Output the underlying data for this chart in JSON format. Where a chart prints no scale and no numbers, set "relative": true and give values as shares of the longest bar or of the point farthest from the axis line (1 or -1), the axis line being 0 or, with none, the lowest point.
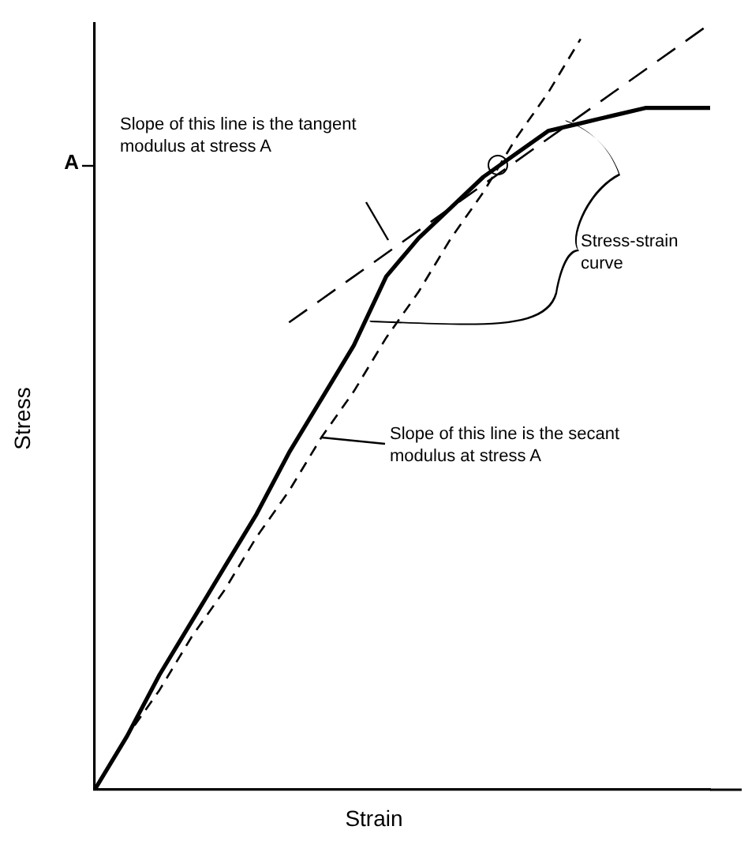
{
  "chart_data": {
    "type": "line",
    "relative": true,
    "xlabel": "Strain",
    "ylabel": "Stress",
    "grid": false,
    "legend": false,
    "categories": [
      null,
      null,
      null,
      null,
      null,
      null,
      null,
      null,
      null,
      null,
      null,
      null,
      null,
      null,
      null,
      null,
      null,
      null,
      null,
      null
    ],
    "series": [
      {
        "color": "#000000",
        "line_style": "solid",
        "values": [
          0,
          0.07,
          0.15,
          0.22,
          0.29,
          0.36,
          0.44,
          0.51,
          0.58,
          0.67,
          0.72,
          0.76,
          0.8,
          0.83,
          0.86,
          0.87,
          0.88,
          0.89,
          0.89,
          0.89
        ]
      },
      {
        "color": "#000000",
        "line_style": "dashed",
        "values": [
          null,
          null,
          null,
          null,
          null,
          null,
          0.61,
          0.64,
          0.67,
          0.7,
          0.73,
          0.76,
          0.79,
          0.82,
          0.85,
          0.88,
          0.91,
          0.94,
          0.97,
          1
        ]
      },
      {
        "color": "#000000",
        "line_style": "dashed",
        "values": [
          0,
          0.07,
          0.13,
          0.2,
          0.26,
          0.33,
          0.39,
          0.46,
          0.52,
          0.59,
          0.65,
          0.72,
          0.78,
          0.85,
          0.91,
          0.98,
          null,
          null,
          null,
          null
        ]
      }
    ],
    "annotations": [
      "A",
      "Slope of this line is the tangent modulus at stress A",
      "Stress-strain curve",
      "Slope of this line is the secant modulus at stress A"
    ]
  }
}
